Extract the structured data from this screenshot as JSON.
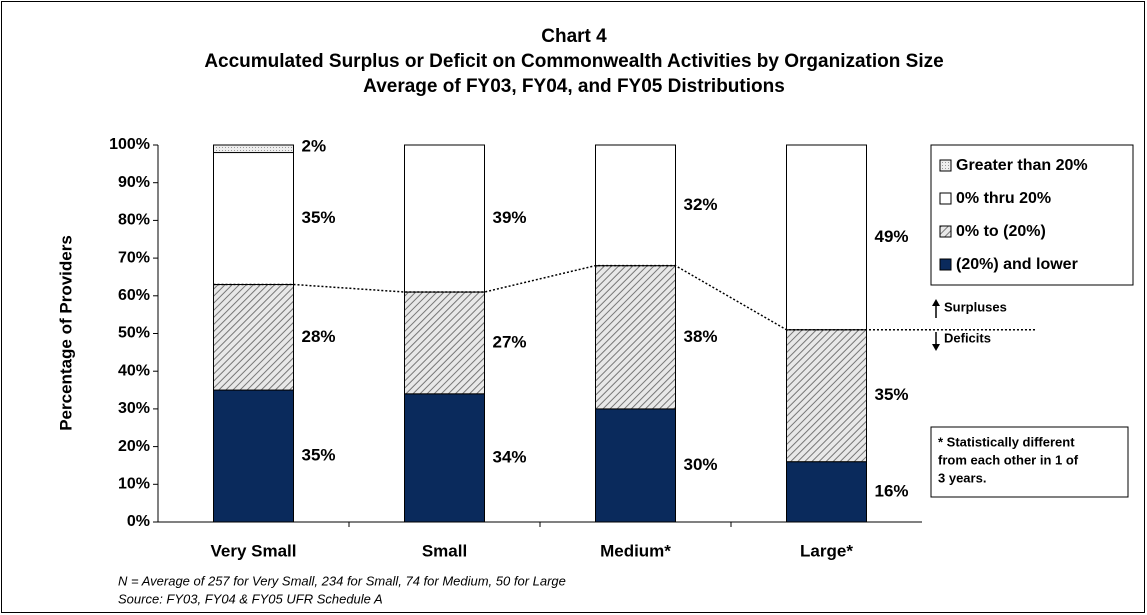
{
  "chart_data": {
    "type": "stacked_bar",
    "title": [
      "Chart 4",
      "Accumulated Surplus or Deficit on Commonwealth Activities by Organization Size",
      "Average of FY03, FY04, and FY05 Distributions"
    ],
    "y_label": "Percentage of Providers",
    "categories": [
      "Very Small",
      "Small",
      "Medium*",
      "Large*"
    ],
    "series": [
      {
        "name": "(20%) and lower",
        "color": "#0a2a5c",
        "values": [
          35,
          34,
          30,
          16
        ],
        "value_labels": [
          "35%",
          "34%",
          "30%",
          "16%"
        ]
      },
      {
        "name": "0% to (20%)",
        "color": "#9a9a9a",
        "pattern": "hatch",
        "values": [
          28,
          27,
          38,
          35
        ],
        "value_labels": [
          "28%",
          "27%",
          "38%",
          "35%"
        ]
      },
      {
        "name": "0% thru 20%",
        "color": "#ffffff",
        "values": [
          35,
          39,
          32,
          49
        ],
        "value_labels": [
          "35%",
          "39%",
          "32%",
          "49%"
        ]
      },
      {
        "name": "Greater than 20%",
        "color": "#d4d4d4",
        "pattern": "dots",
        "values": [
          2,
          null,
          null,
          null
        ],
        "value_labels": [
          "2%",
          null,
          null,
          null
        ]
      }
    ],
    "ylim": [
      0,
      100
    ],
    "yticks": [
      {
        "value": 0,
        "label": "0%"
      },
      {
        "value": 10,
        "label": "10%"
      },
      {
        "value": 20,
        "label": "20%"
      },
      {
        "value": 30,
        "label": "30%"
      },
      {
        "value": 40,
        "label": "40%"
      },
      {
        "value": 50,
        "label": "50%"
      },
      {
        "value": 60,
        "label": "60%"
      },
      {
        "value": 70,
        "label": "70%"
      },
      {
        "value": 80,
        "label": "80%"
      },
      {
        "value": 90,
        "label": "90%"
      },
      {
        "value": 100,
        "label": "100%"
      }
    ],
    "legend": "right",
    "annotations": {
      "surpluses": "Surpluses",
      "deficits": "Deficits",
      "note": [
        "* Statistically different",
        "from each other in 1 of",
        "3 years."
      ]
    },
    "footnotes": [
      "N = Average of 257 for Very Small, 234 for Small, 74 for Medium, 50 for Large",
      "Source:  FY03, FY04 & FY05 UFR Schedule A"
    ]
  }
}
